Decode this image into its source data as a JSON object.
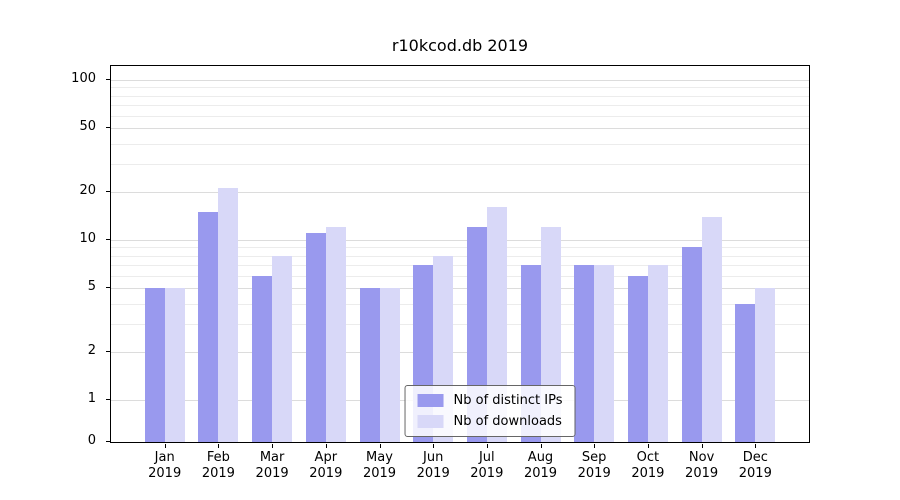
{
  "chart_data": {
    "type": "bar",
    "title": "r10kcod.db 2019",
    "categories": [
      "Jan",
      "Feb",
      "Mar",
      "Apr",
      "May",
      "Jun",
      "Jul",
      "Aug",
      "Sep",
      "Oct",
      "Nov",
      "Dec"
    ],
    "year_label": "2019",
    "series": [
      {
        "name": "Nb of distinct IPs",
        "color": "#9999ee",
        "values": [
          5,
          15,
          6,
          11,
          5,
          7,
          12,
          7,
          7,
          6,
          9,
          4
        ]
      },
      {
        "name": "Nb of downloads",
        "color": "#d8d8f8",
        "values": [
          5,
          21,
          8,
          12,
          5,
          8,
          16,
          12,
          7,
          7,
          14,
          5
        ]
      }
    ],
    "yscale": "log",
    "yticks": [
      0,
      1,
      2,
      5,
      10,
      20,
      50,
      100
    ],
    "minor_gridlines": [
      3,
      4,
      6,
      7,
      8,
      9,
      30,
      40,
      60,
      70,
      80,
      90
    ],
    "ylim": [
      0,
      100
    ],
    "grid": true,
    "legend_position": "lower center"
  }
}
